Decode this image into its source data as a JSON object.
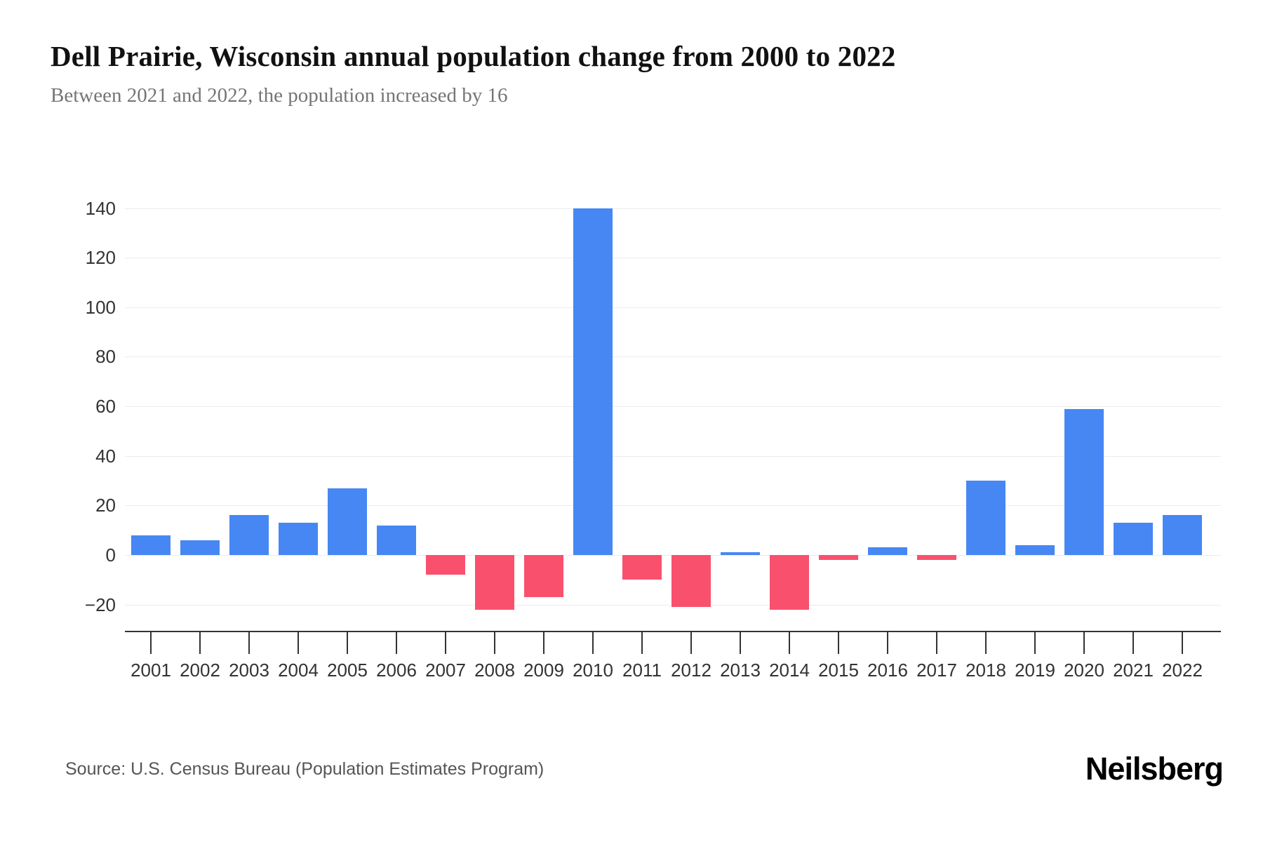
{
  "header": {
    "title": "Dell Prairie, Wisconsin annual population change from 2000 to 2022",
    "subtitle": "Between 2021 and 2022, the population increased by 16"
  },
  "footer": {
    "source": "Source: U.S. Census Bureau (Population Estimates Program)",
    "brand": "Neilsberg"
  },
  "colors": {
    "positive_bar": "#4687f4",
    "negative_bar": "#f9506e",
    "gridline": "#ececec",
    "axis": "#333333",
    "tick_label": "#333333",
    "title": "#111111",
    "subtitle": "#757575",
    "source": "#555555"
  },
  "chart_data": {
    "type": "bar",
    "title": "Dell Prairie, Wisconsin annual population change from 2000 to 2022",
    "xlabel": "",
    "ylabel": "",
    "categories": [
      "2001",
      "2002",
      "2003",
      "2004",
      "2005",
      "2006",
      "2007",
      "2008",
      "2009",
      "2010",
      "2011",
      "2012",
      "2013",
      "2014",
      "2015",
      "2016",
      "2017",
      "2018",
      "2019",
      "2020",
      "2021",
      "2022"
    ],
    "values": [
      8,
      6,
      16,
      13,
      27,
      12,
      -8,
      -22,
      -17,
      140,
      -10,
      -21,
      1,
      -22,
      -2,
      3,
      -2,
      30,
      4,
      59,
      13,
      16
    ],
    "yticks": [
      140,
      120,
      100,
      80,
      60,
      40,
      20,
      0,
      -20
    ],
    "ylim": [
      -30,
      145
    ],
    "grid": true,
    "legend": false,
    "positive_color": "#4687f4",
    "negative_color": "#f9506e"
  }
}
